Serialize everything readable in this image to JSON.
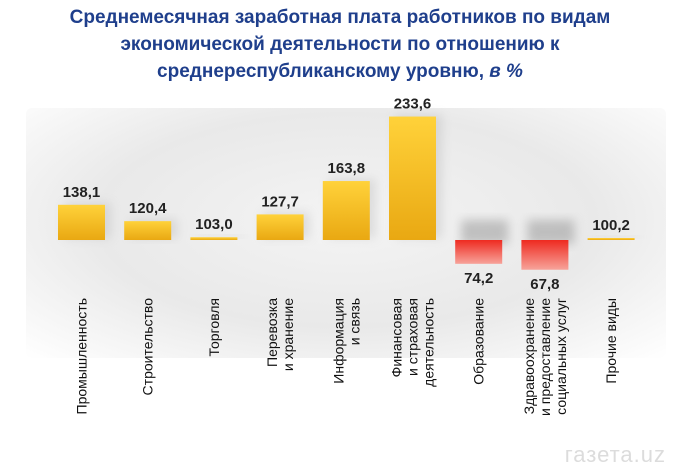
{
  "title": {
    "line1": "Среднемесячная заработная плата работников по видам",
    "line2": "экономической деятельности по отношению к",
    "line3": "среднереспубликанскому уровню,",
    "unit": "в %"
  },
  "watermark": "газета.uz",
  "colors": {
    "above_base": "#f2b71b",
    "below_base": "#e1271f",
    "title": "#1f3f8c"
  },
  "chart_data": {
    "type": "bar",
    "baseline": 100,
    "categories": [
      [
        "Промышленность"
      ],
      [
        "Строительство"
      ],
      [
        "Торговля"
      ],
      [
        "Перевозка",
        "и хранение"
      ],
      [
        "Информация",
        "и связь"
      ],
      [
        "Финансовая",
        "и страховая",
        "деятельность"
      ],
      [
        "Образование"
      ],
      [
        "Здравоохранение",
        "и предоставление",
        "социальных услуг"
      ],
      [
        "Прочие виды"
      ]
    ],
    "values": [
      138.1,
      120.4,
      103.0,
      127.7,
      163.8,
      233.6,
      74.2,
      67.8,
      100.2
    ],
    "value_labels": [
      "138,1",
      "120,4",
      "103,0",
      "127,7",
      "163,8",
      "233,6",
      "74,2",
      "67,8",
      "100,2"
    ]
  }
}
